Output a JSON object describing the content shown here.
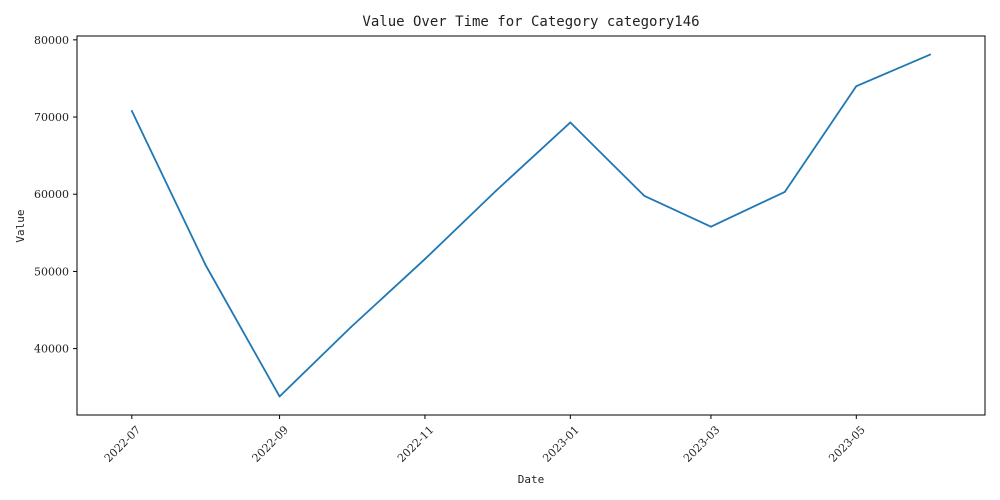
{
  "chart_data": {
    "type": "line",
    "title": "Value Over Time for Category category146",
    "xlabel": "Date",
    "ylabel": "Value",
    "x": [
      "2022-07-01",
      "2022-08-01",
      "2022-09-01",
      "2022-10-01",
      "2022-11-01",
      "2022-12-01",
      "2023-01-01",
      "2023-02-01",
      "2023-03-01",
      "2023-04-01",
      "2023-05-01",
      "2023-06-01"
    ],
    "series": [
      {
        "values": [
          70800,
          50800,
          33800,
          42800,
          51600,
          60500,
          69300,
          59800,
          55800,
          60300,
          74000,
          78100
        ]
      }
    ],
    "x_ticks": [
      "2022-07",
      "2022-09",
      "2022-11",
      "2023-01",
      "2023-03",
      "2023-05"
    ],
    "y_ticks": [
      40000,
      50000,
      60000,
      70000,
      80000
    ],
    "ylim": [
      31400,
      80500
    ],
    "xlim": [
      "2022-06-08",
      "2023-06-24"
    ],
    "grid": false,
    "line_color": "#1f77b4"
  }
}
